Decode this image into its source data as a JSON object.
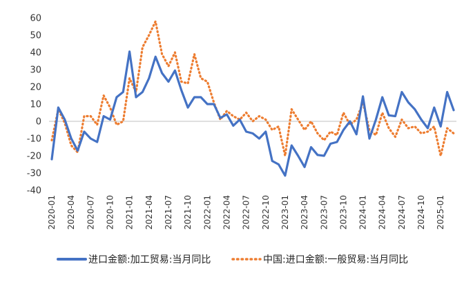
{
  "chart_data": {
    "type": "line",
    "title": "",
    "xlabel": "",
    "ylabel": "",
    "ylim": [
      -40,
      60
    ],
    "yticks": [
      60,
      50,
      40,
      30,
      20,
      10,
      0,
      -10,
      -20,
      -30,
      -40
    ],
    "xtick_labels": [
      "2020-01",
      "2020-04",
      "2020-07",
      "2020-10",
      "2021-01",
      "2021-04",
      "2021-07",
      "2021-10",
      "2022-01",
      "2022-04",
      "2022-07",
      "2022-10",
      "2023-01",
      "2023-04",
      "2023-07",
      "2023-10",
      "2024-01",
      "2024-04",
      "2024-07",
      "2024-10",
      "2025-01"
    ],
    "grid": false,
    "legend_position": "bottom",
    "x": [
      "2020-01",
      "2020-02",
      "2020-03",
      "2020-04",
      "2020-05",
      "2020-06",
      "2020-07",
      "2020-08",
      "2020-09",
      "2020-10",
      "2020-11",
      "2020-12",
      "2021-01",
      "2021-02",
      "2021-03",
      "2021-04",
      "2021-05",
      "2021-06",
      "2021-07",
      "2021-08",
      "2021-09",
      "2021-10",
      "2021-11",
      "2021-12",
      "2022-01",
      "2022-02",
      "2022-03",
      "2022-04",
      "2022-05",
      "2022-06",
      "2022-07",
      "2022-08",
      "2022-09",
      "2022-10",
      "2022-11",
      "2022-12",
      "2023-01",
      "2023-02",
      "2023-03",
      "2023-04",
      "2023-05",
      "2023-06",
      "2023-07",
      "2023-08",
      "2023-09",
      "2023-10",
      "2023-11",
      "2023-12",
      "2024-01",
      "2024-02",
      "2024-03",
      "2024-04",
      "2024-05",
      "2024-06",
      "2024-07",
      "2024-08",
      "2024-09",
      "2024-10",
      "2024-11",
      "2024-12",
      "2025-01",
      "2025-02",
      "2025-03"
    ],
    "series": [
      {
        "name": "进口金额:加工贸易:当月同比",
        "color": "#4472C4",
        "style": "solid",
        "values": [
          -22,
          8,
          1,
          -10,
          -17,
          -6,
          -10,
          -12,
          3,
          1,
          14,
          17,
          40.5,
          14,
          17,
          25,
          37.5,
          28,
          23,
          29.5,
          18,
          8,
          14,
          14,
          10,
          10,
          2,
          4,
          -2.5,
          1,
          -6,
          -7,
          -10,
          -6,
          -23,
          -25,
          -31.5,
          -14,
          -20,
          -26.5,
          -15,
          -19.5,
          -20,
          -13,
          -12,
          -5,
          0,
          -7.5,
          14.5,
          -10,
          1,
          14,
          3.5,
          3,
          17,
          11,
          7,
          1,
          -4,
          8,
          -3,
          17,
          6.5
        ]
      },
      {
        "name": "中国:进口金额:一般贸易:当月同比",
        "color": "#ED7D31",
        "style": "dotted",
        "values": [
          -11,
          7,
          -1,
          -14,
          -18,
          3,
          3,
          -2,
          15,
          8,
          -2,
          0,
          25,
          17,
          43,
          50,
          58,
          39,
          32,
          40,
          23,
          22,
          39,
          25,
          23,
          11,
          1,
          6,
          3,
          1,
          5,
          0,
          3,
          1,
          -5,
          -3,
          -20,
          7,
          1,
          -5,
          0,
          -7,
          -11,
          -6,
          -8,
          5,
          -2,
          1,
          11,
          -5,
          -8,
          5,
          -4,
          -9,
          1,
          -4,
          -3,
          -7,
          -6,
          -3,
          -20,
          -4,
          -7
        ]
      }
    ]
  }
}
